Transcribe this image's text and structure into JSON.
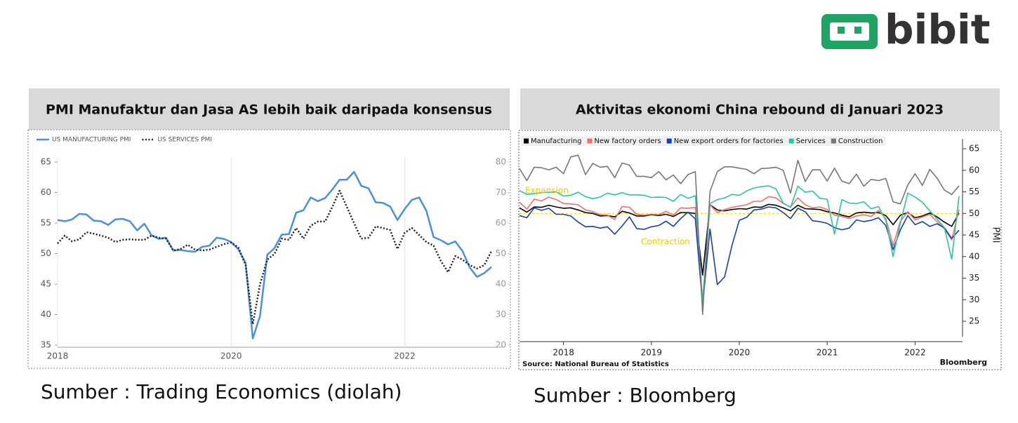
{
  "logo": "bibit",
  "captions": [
    "Sumber : Trading Economics (diolah)",
    "Sumber : Bloomberg"
  ],
  "chart_data": [
    {
      "type": "line",
      "title": "PMI Manufaktur dan Jasa AS lebih baik daripada konsensus",
      "categories": [
        "2018",
        null,
        null,
        null,
        null,
        null,
        null,
        null,
        null,
        null,
        null,
        null,
        null,
        null,
        null,
        null,
        null,
        null,
        null,
        null,
        null,
        null,
        null,
        null,
        "2020",
        null,
        null,
        null,
        null,
        null,
        null,
        null,
        null,
        null,
        null,
        null,
        null,
        null,
        null,
        null,
        null,
        null,
        null,
        null,
        null,
        null,
        null,
        null,
        "2022",
        null,
        null,
        null,
        null,
        null,
        null,
        null,
        null,
        null,
        null,
        null,
        null
      ],
      "series": [
        {
          "name": "US MANUFACTURING PMI",
          "color": "#4a90e2",
          "axis": "y",
          "dash": "solid",
          "values": [
            55.5,
            55.3,
            55.6,
            56.5,
            56.4,
            55.4,
            55.3,
            54.7,
            55.6,
            55.7,
            55.3,
            53.8,
            54.9,
            53.0,
            52.4,
            52.6,
            50.5,
            50.6,
            50.4,
            50.3,
            51.1,
            51.3,
            52.6,
            52.4,
            51.9,
            50.7,
            48.5,
            36.1,
            39.8,
            49.8,
            50.9,
            53.1,
            53.2,
            56.7,
            57.1,
            59.2,
            58.6,
            59.1,
            60.5,
            62.1,
            62.1,
            63.4,
            61.1,
            60.7,
            58.4,
            58.3,
            57.7,
            55.5,
            57.3,
            58.8,
            59.2,
            57.0,
            52.7,
            52.2,
            51.5,
            52.0,
            50.4,
            47.7,
            46.2,
            46.8,
            47.8
          ]
        },
        {
          "name": "US SERVICES PMI",
          "color": "#222222",
          "axis": "y2",
          "dash": "dotted",
          "values": [
            53.3,
            55.9,
            54.0,
            54.7,
            57.0,
            56.5,
            55.9,
            55.2,
            53.8,
            54.5,
            54.7,
            54.5,
            54.5,
            55.9,
            55.2,
            54.9,
            51.0,
            51.5,
            52.9,
            51.3,
            51.0,
            51.3,
            52.2,
            53.1,
            53.6,
            52.0,
            46.2,
            26.9,
            40.0,
            48.0,
            49.9,
            54.9,
            54.5,
            58.4,
            54.9,
            59.1,
            60.5,
            60.5,
            65.3,
            70.6,
            65.3,
            60.0,
            54.9,
            55.2,
            58.9,
            58.4,
            57.7,
            51.5,
            56.8,
            58.4,
            56.1,
            53.8,
            52.6,
            47.6,
            43.9,
            49.2,
            48.0,
            46.2,
            45.1,
            46.2,
            50.8
          ]
        }
      ],
      "ylim": [
        35,
        65
      ],
      "yticks": [
        35,
        40,
        45,
        50,
        55,
        60,
        65
      ],
      "y2lim": [
        20,
        80
      ],
      "y2ticks": [
        20,
        30,
        40,
        50,
        60,
        70,
        80
      ],
      "grid": "x"
    },
    {
      "type": "line",
      "title": "Aktivitas ekonomi China rebound di Januari 2023",
      "categories": [
        null,
        null,
        null,
        null,
        null,
        null,
        "2018",
        null,
        null,
        null,
        null,
        null,
        null,
        null,
        null,
        null,
        null,
        null,
        "2019",
        null,
        null,
        null,
        null,
        null,
        null,
        null,
        null,
        null,
        null,
        null,
        "2020",
        null,
        null,
        null,
        null,
        null,
        null,
        null,
        null,
        null,
        null,
        null,
        "2021",
        null,
        null,
        null,
        null,
        null,
        null,
        null,
        null,
        null,
        null,
        null,
        "2022",
        null,
        null,
        null,
        null,
        null,
        null
      ],
      "series": [
        {
          "name": "Manufacturing",
          "color": "#000000",
          "values": [
            51.3,
            50.3,
            51.5,
            51.4,
            51.9,
            51.5,
            51.2,
            51.3,
            50.8,
            50.2,
            50.0,
            49.4,
            49.5,
            49.2,
            50.5,
            50.1,
            49.4,
            49.4,
            49.7,
            49.5,
            49.8,
            49.3,
            50.2,
            50.2,
            50.0,
            35.7,
            52.0,
            50.8,
            50.6,
            50.9,
            51.1,
            51.0,
            51.5,
            51.4,
            52.1,
            51.9,
            51.3,
            50.6,
            51.9,
            51.1,
            51.0,
            50.9,
            50.4,
            50.1,
            49.6,
            49.2,
            50.1,
            50.3,
            50.1,
            50.2,
            49.5,
            47.4,
            49.6,
            50.2,
            49.0,
            49.4,
            50.1,
            49.2,
            48.0,
            47.0,
            50.1
          ]
        },
        {
          "name": "New factory orders",
          "color": "#f07070",
          "values": [
            52.6,
            51.0,
            53.3,
            52.9,
            53.8,
            53.2,
            52.3,
            52.2,
            52.0,
            50.8,
            50.4,
            49.7,
            49.6,
            48.6,
            51.6,
            51.4,
            49.8,
            49.6,
            49.8,
            49.7,
            50.5,
            49.6,
            51.3,
            51.2,
            51.4,
            29.3,
            52.0,
            50.2,
            50.9,
            51.4,
            51.7,
            52.0,
            52.8,
            52.8,
            53.9,
            53.6,
            52.3,
            51.5,
            53.6,
            52.0,
            51.3,
            51.5,
            50.9,
            49.6,
            49.3,
            48.8,
            49.4,
            49.7,
            49.3,
            50.7,
            48.8,
            42.6,
            48.2,
            50.4,
            48.5,
            49.2,
            49.8,
            48.1,
            46.4,
            43.9,
            50.9
          ]
        },
        {
          "name": "New export orders for factories",
          "color": "#1a3fb0",
          "values": [
            49.5,
            49.0,
            51.3,
            50.7,
            51.2,
            49.8,
            49.8,
            49.4,
            48.0,
            46.9,
            47.0,
            46.6,
            46.9,
            45.2,
            47.1,
            49.2,
            46.5,
            46.3,
            46.9,
            47.2,
            48.2,
            47.0,
            48.8,
            50.3,
            48.7,
            28.7,
            46.4,
            33.5,
            35.3,
            42.6,
            48.4,
            49.1,
            50.8,
            51.0,
            51.5,
            51.3,
            50.2,
            48.8,
            51.2,
            50.4,
            48.3,
            48.1,
            47.7,
            46.7,
            46.2,
            46.6,
            48.5,
            48.1,
            48.4,
            49.0,
            47.2,
            41.6,
            46.2,
            49.5,
            47.4,
            48.1,
            47.0,
            47.6,
            46.7,
            44.2,
            46.1
          ]
        },
        {
          "name": "Services",
          "color": "#2cc4a0",
          "values": [
            55.3,
            54.4,
            54.6,
            54.8,
            54.9,
            55.0,
            54.0,
            54.2,
            54.9,
            53.9,
            53.4,
            53.8,
            54.7,
            54.3,
            54.8,
            54.3,
            54.3,
            54.2,
            53.7,
            53.8,
            53.7,
            52.8,
            54.4,
            53.5,
            54.1,
            29.6,
            52.3,
            53.2,
            53.6,
            54.4,
            54.2,
            55.2,
            55.9,
            56.2,
            56.4,
            55.7,
            52.4,
            51.4,
            56.3,
            54.9,
            55.2,
            53.5,
            53.3,
            45.2,
            53.2,
            52.4,
            52.3,
            52.7,
            51.1,
            51.6,
            48.4,
            40.0,
            47.8,
            54.7,
            53.8,
            52.6,
            50.6,
            48.7,
            46.7,
            39.4,
            54.0
          ]
        },
        {
          "name": "Construction",
          "color": "#777777",
          "values": [
            60.4,
            57.6,
            60.7,
            60.6,
            60.1,
            60.7,
            59.2,
            63.1,
            63.5,
            59.0,
            61.6,
            60.7,
            60.9,
            58.3,
            61.7,
            61.2,
            58.6,
            58.6,
            58.3,
            59.7,
            57.8,
            58.9,
            56.9,
            59.0,
            59.7,
            26.6,
            55.1,
            59.7,
            60.8,
            60.8,
            60.5,
            60.2,
            59.2,
            60.4,
            60.5,
            60.7,
            60.0,
            54.7,
            62.3,
            57.4,
            60.1,
            60.1,
            57.5,
            60.5,
            57.5,
            56.9,
            59.1,
            56.3,
            57.9,
            57.6,
            58.1,
            52.7,
            52.2,
            56.6,
            59.2,
            56.5,
            60.2,
            58.2,
            55.4,
            54.4,
            56.4
          ]
        }
      ],
      "ylim": [
        25,
        65
      ],
      "yticks": [
        25,
        30,
        35,
        40,
        45,
        50,
        55,
        60,
        65
      ],
      "yaxis_side": "right",
      "ylabel": "PMI",
      "reference_line": 50,
      "reference_color": "#e8d000",
      "annotations": [
        {
          "text": "Expansion",
          "color": "#e8d000"
        },
        {
          "text": "Contraction",
          "color": "#e8d000"
        }
      ],
      "source": "Source: National Bureau of Statistics",
      "credit": "Bloomberg"
    }
  ]
}
